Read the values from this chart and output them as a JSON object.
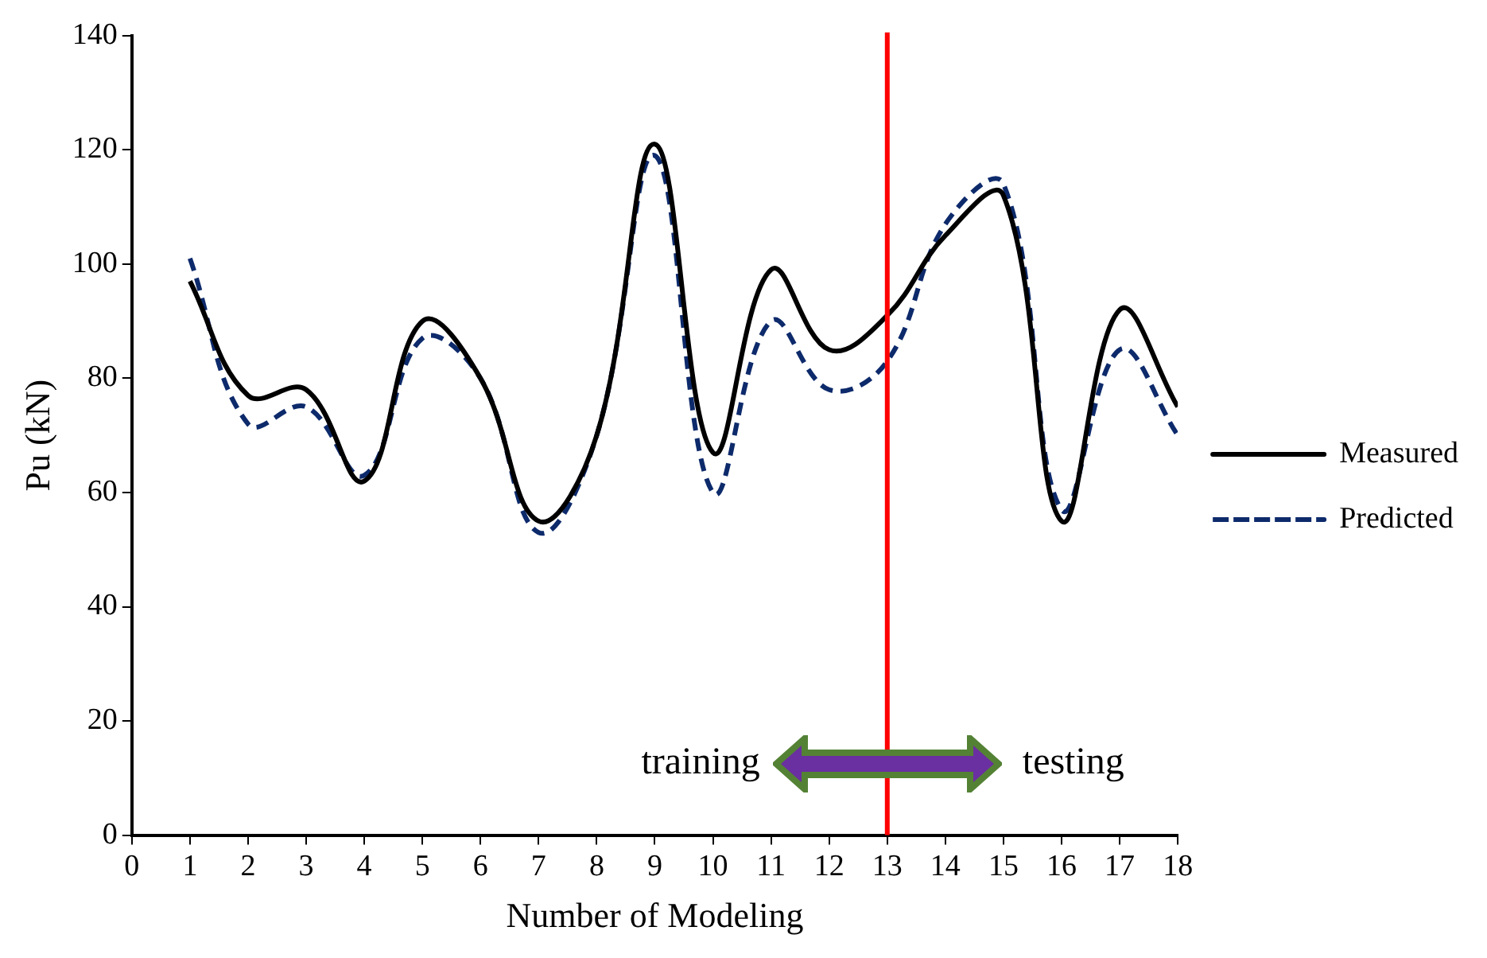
{
  "chart_data": {
    "type": "line",
    "xlabel": "Number of Modeling",
    "ylabel": "Pu (kN)",
    "x": [
      1,
      2,
      3,
      4,
      5,
      6,
      7,
      8,
      9,
      10,
      11,
      12,
      13,
      14,
      15,
      16,
      17,
      18
    ],
    "series": [
      {
        "name": "Measured",
        "color": "#000000",
        "line_style": "solid",
        "values": [
          97,
          77,
          78,
          62,
          90,
          80,
          55,
          70,
          121,
          67,
          99,
          85,
          91,
          105,
          112,
          55,
          92,
          75
        ]
      },
      {
        "name": "Predicted",
        "color": "#0d2a6b",
        "line_style": "dashed",
        "values": [
          101,
          72,
          75,
          63,
          87,
          80,
          53,
          70,
          119,
          60,
          90,
          78,
          83,
          107,
          114,
          57,
          85,
          70
        ]
      }
    ],
    "xlim": [
      0,
      18
    ],
    "xticks": [
      0,
      1,
      2,
      3,
      4,
      5,
      6,
      7,
      8,
      9,
      10,
      11,
      12,
      13,
      14,
      15,
      16,
      17,
      18
    ],
    "ylim": [
      0,
      140
    ],
    "yticks": [
      0,
      20,
      40,
      60,
      80,
      100,
      120,
      140
    ],
    "grid": false,
    "legend": "right",
    "marker": "none",
    "ref_lines": [
      {
        "axis": "x",
        "value": 13,
        "color": "#ff0000"
      }
    ],
    "annotations": [
      "training",
      "testing"
    ]
  }
}
